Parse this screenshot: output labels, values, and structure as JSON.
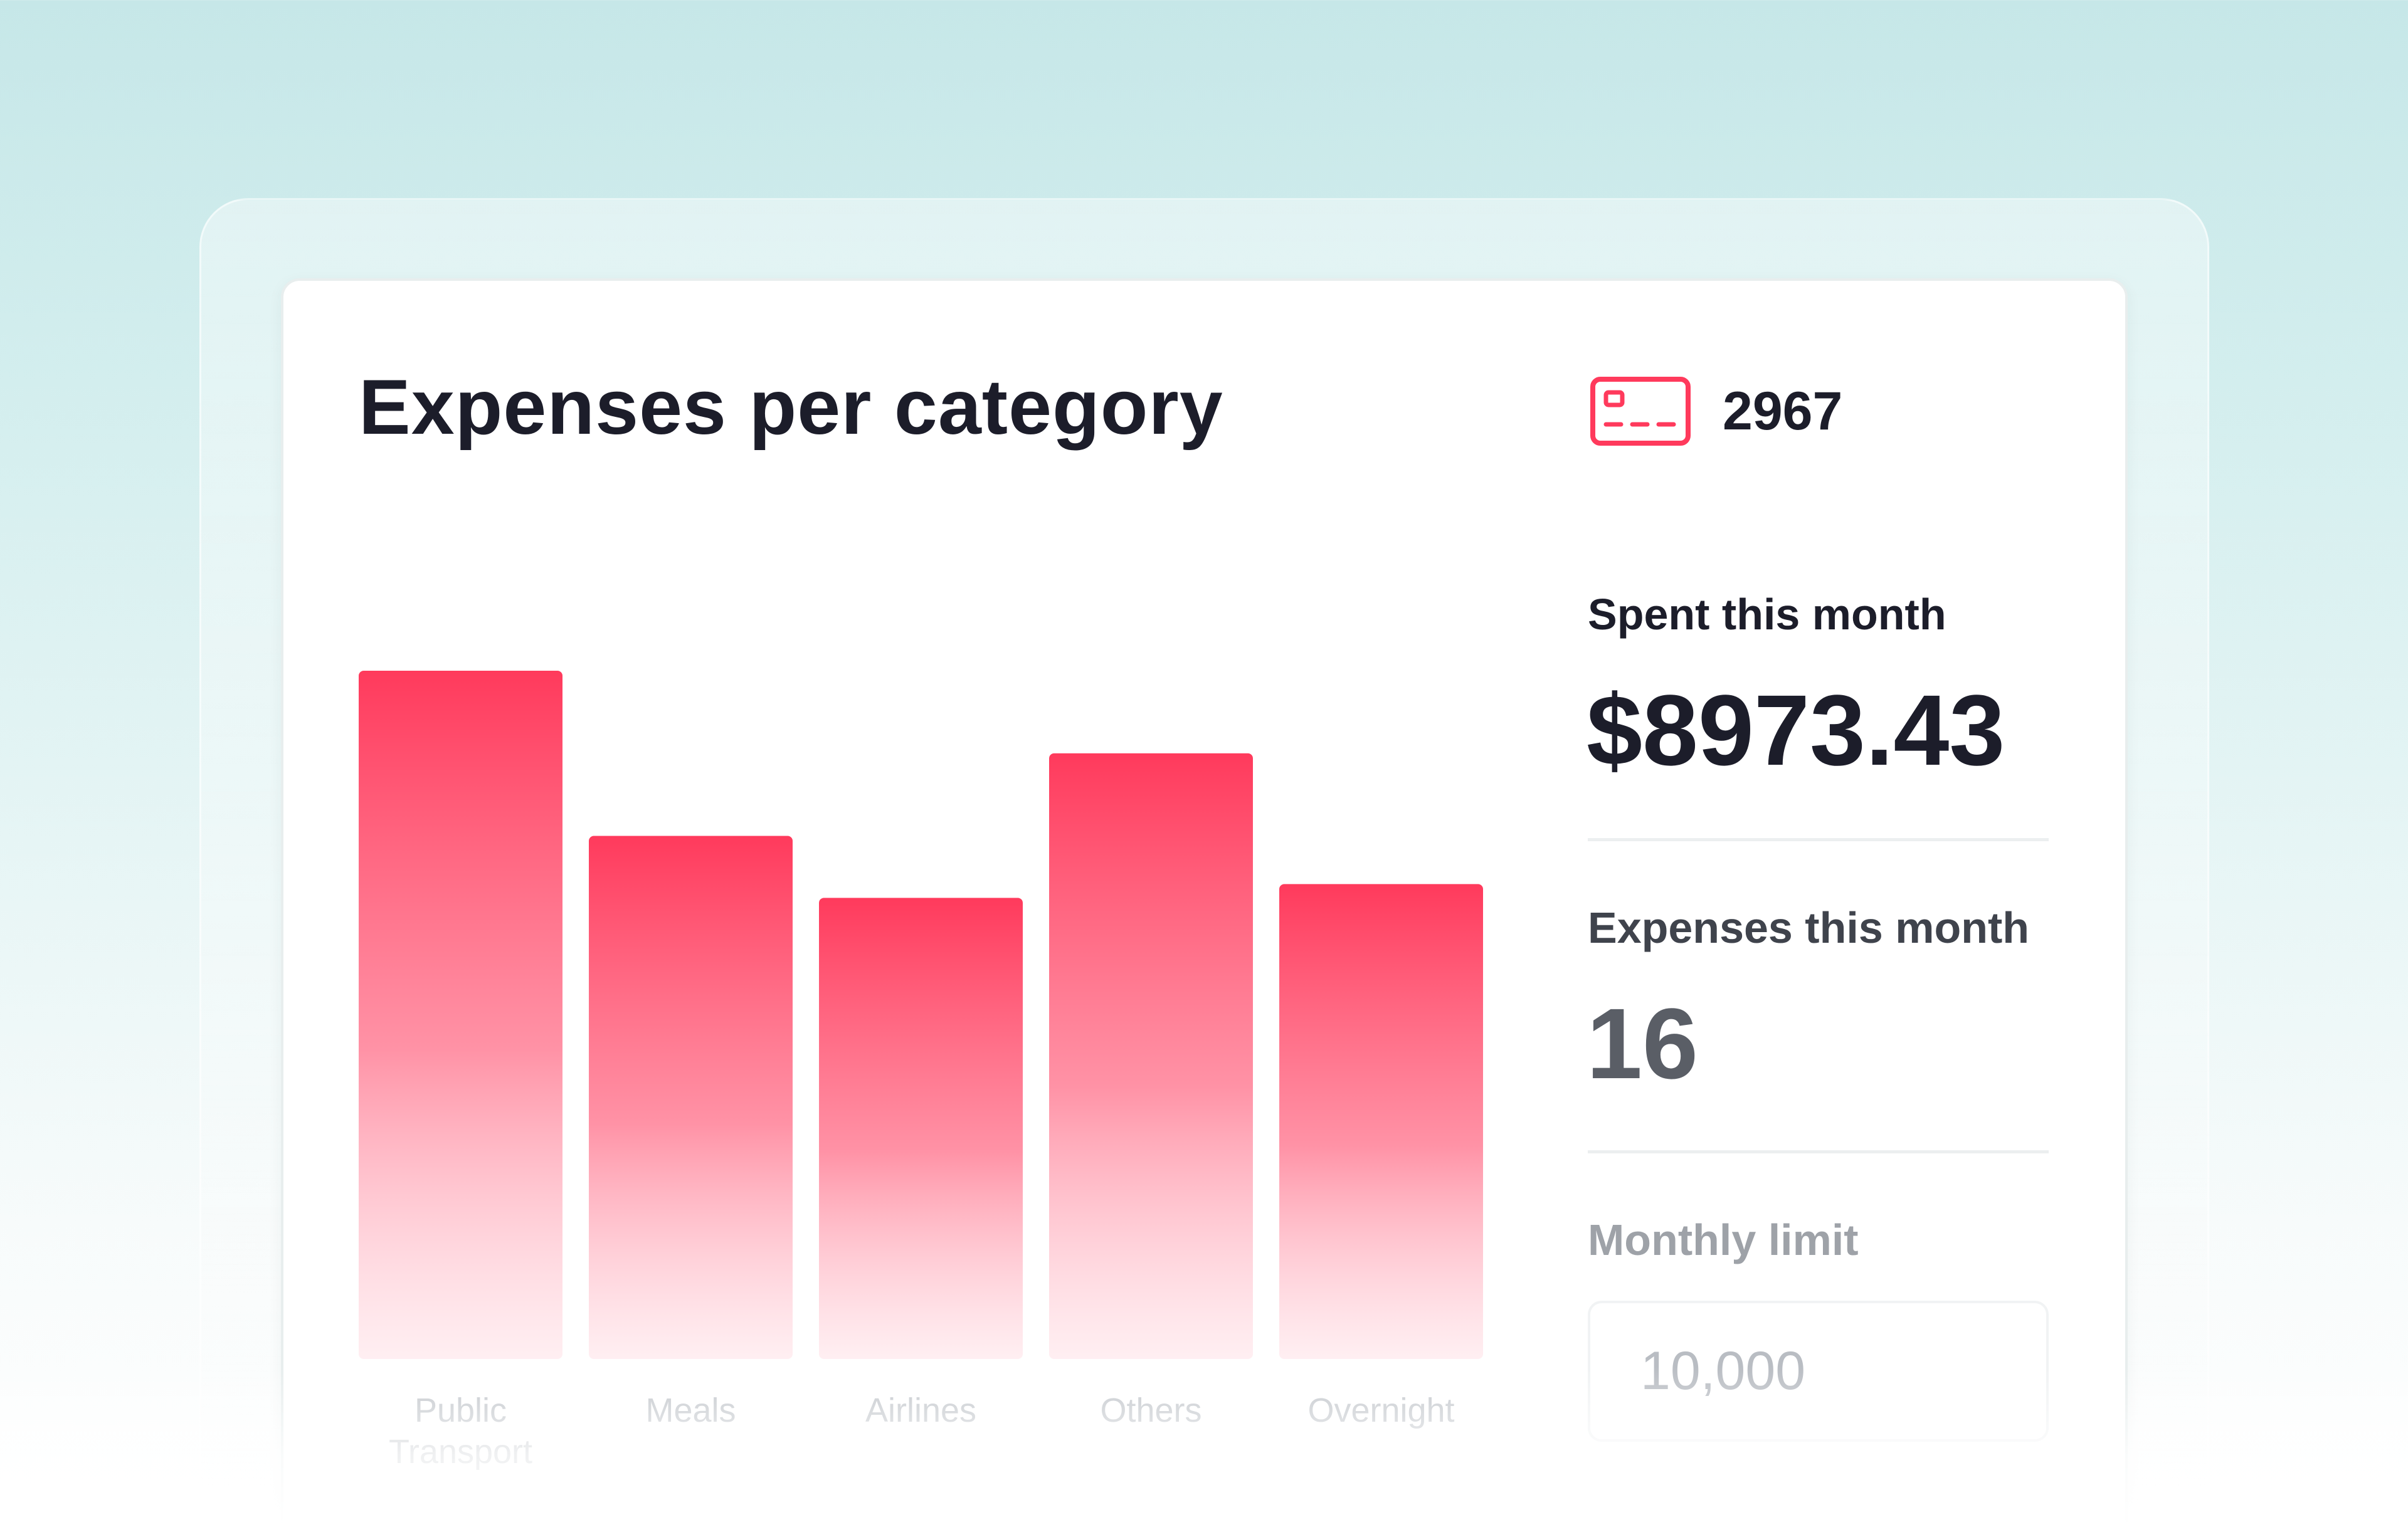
{
  "card": {
    "title": "Expenses per category",
    "card_icon": "credit-card-icon",
    "card_number": "2967"
  },
  "stats": {
    "spent_label": "Spent this month",
    "spent_value": "$8973.43",
    "expenses_label": "Expenses this month",
    "expenses_value": "16",
    "limit_label": "Monthly limit",
    "limit_value": "10,000",
    "limit_suffix": "$"
  },
  "colors": {
    "accent": "#ff3a5c",
    "background": "#c6e7e8"
  },
  "chart_data": {
    "type": "bar",
    "title": "Expenses per category",
    "categories": [
      "Public\nTransport",
      "Meals",
      "Airlines",
      "Others",
      "Overnight"
    ],
    "values": [
      100,
      76,
      67,
      88,
      69
    ],
    "ylim": [
      0,
      100
    ],
    "grid": false,
    "xlabel": "",
    "ylabel": ""
  }
}
